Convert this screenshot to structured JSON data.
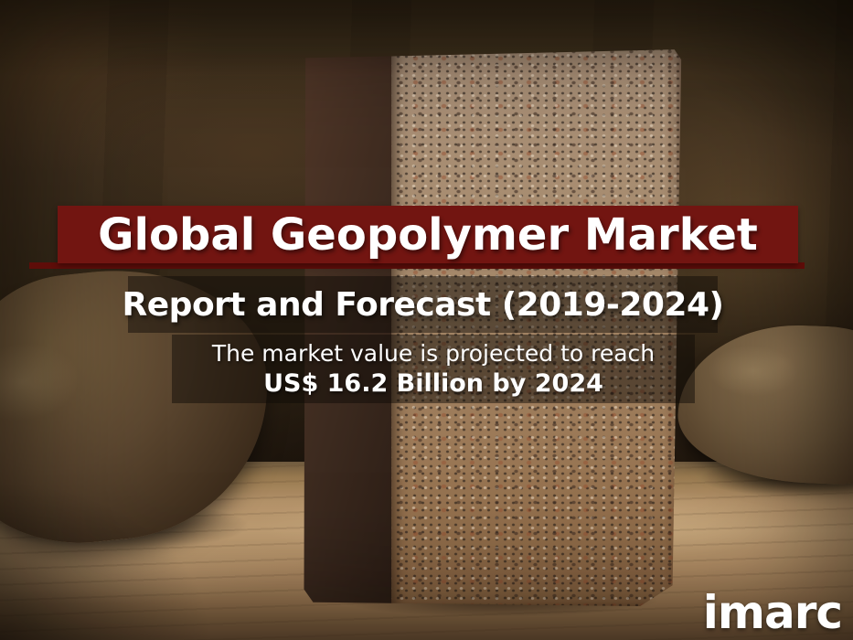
{
  "banner": {
    "title": "Global Geopolymer Market"
  },
  "subtitle": {
    "text": "Report and Forecast (2019-2024)"
  },
  "projection": {
    "line1": "The market value is projected to reach",
    "line2": "US$ 16.2 Billion by 2024"
  },
  "logo": {
    "text": "imarc"
  },
  "colors": {
    "banner_red": "#721511",
    "underline_red": "#5e0d09",
    "overlay_dark": "rgba(15,10,6,0.48)",
    "text_white": "#ffffff"
  }
}
